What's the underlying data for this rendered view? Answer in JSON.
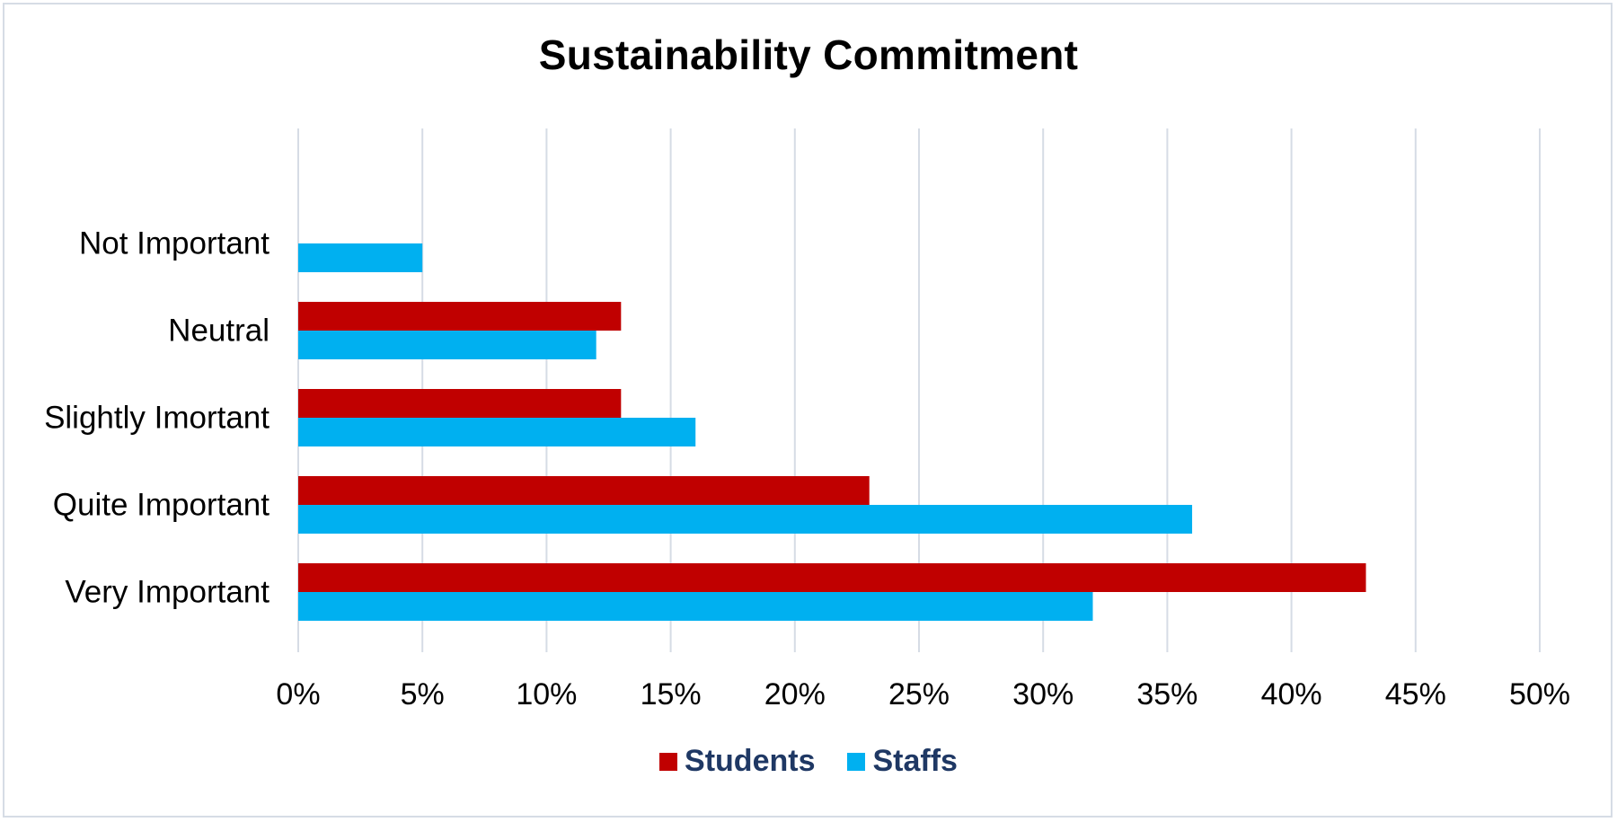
{
  "chart_data": {
    "type": "bar",
    "orientation": "horizontal",
    "title": "Sustainability Commitment",
    "categories": [
      "Not Important",
      "Neutral",
      "Slightly Imortant",
      "Quite Important",
      "Very Important"
    ],
    "series": [
      {
        "name": "Students",
        "color": "#c00000",
        "values": [
          0,
          13,
          13,
          23,
          43
        ]
      },
      {
        "name": "Staffs",
        "color": "#00b0f0",
        "values": [
          5,
          12,
          16,
          36,
          32
        ]
      }
    ],
    "xlim": [
      0,
      50
    ],
    "xticks": [
      0,
      5,
      10,
      15,
      20,
      25,
      30,
      35,
      40,
      45,
      50
    ],
    "xtick_labels": [
      "0%",
      "5%",
      "10%",
      "15%",
      "20%",
      "25%",
      "30%",
      "35%",
      "40%",
      "45%",
      "50%"
    ],
    "xlabel": "",
    "ylabel": "",
    "grid": "vertical",
    "grid_color": "#d6dce5",
    "legend_position": "bottom"
  }
}
